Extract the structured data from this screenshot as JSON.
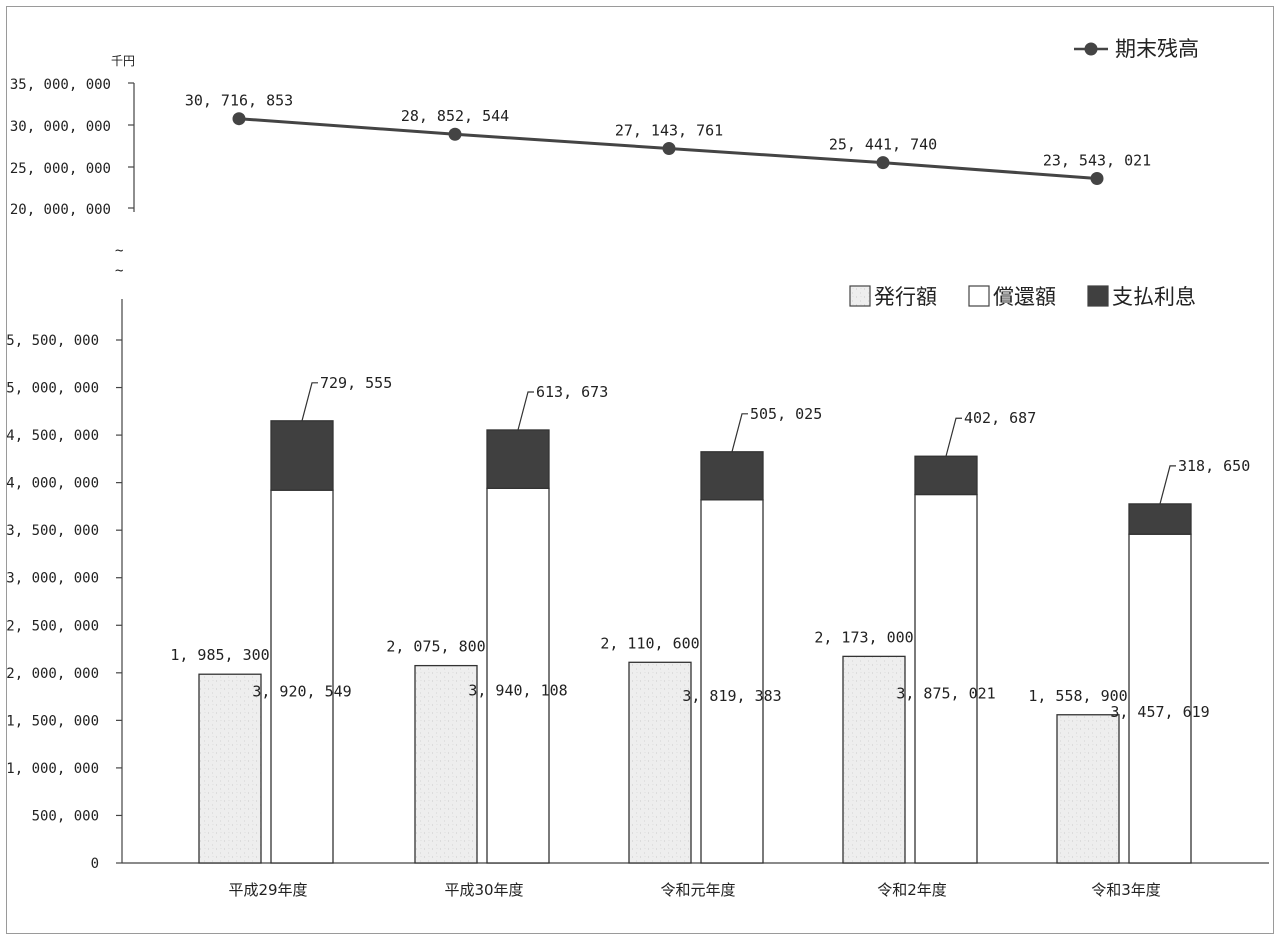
{
  "chart_data": {
    "type": "bar",
    "unit": "千円",
    "categories": [
      "平成29年度",
      "平成30年度",
      "令和元年度",
      "令和2年度",
      "令和3年度"
    ],
    "series": [
      {
        "name": "発行額",
        "type": "bar",
        "values": [
          1985300,
          2075800,
          2110600,
          2173000,
          1558900
        ],
        "labels": [
          "1, 985, 300",
          "2, 075, 800",
          "2, 110, 600",
          "2, 173, 000",
          "1, 558, 900"
        ]
      },
      {
        "name": "償還額",
        "type": "stacked-bar",
        "values": [
          3920549,
          3940108,
          3819383,
          3875021,
          3457619
        ],
        "labels": [
          "3, 920, 549",
          "3, 940, 108",
          "3, 819, 383",
          "3, 875, 021",
          "3, 457, 619"
        ]
      },
      {
        "name": "支払利息",
        "type": "stacked-bar",
        "values": [
          729555,
          613673,
          505025,
          402687,
          318650
        ],
        "labels": [
          "729, 555",
          "613, 673",
          "505, 025",
          "402, 687",
          "318, 650"
        ]
      },
      {
        "name": "期末残高",
        "type": "line",
        "values": [
          30716853,
          28852544,
          27143761,
          25441740,
          23543021
        ],
        "labels": [
          "30, 716, 853",
          "28, 852, 544",
          "27, 143, 761",
          "25, 441, 740",
          "23, 543, 021"
        ]
      }
    ],
    "upper_axis": {
      "ylim": [
        20000000,
        35000000
      ],
      "ticks": [
        "20, 000, 000",
        "25, 000, 000",
        "30, 000, 000",
        "35, 000, 000"
      ]
    },
    "lower_axis": {
      "ylim": [
        0,
        5500000
      ],
      "ticks": [
        "0",
        "500, 000",
        "1, 000, 000",
        "1, 500, 000",
        "2, 000, 000",
        "2, 500, 000",
        "3, 000, 000",
        "3, 500, 000",
        "4, 000, 000",
        "4, 500, 000",
        "5, 000, 000",
        "5, 500, 000"
      ]
    },
    "axis_break": "~",
    "legend_position": "top-right",
    "grid": false,
    "colors": {
      "issue": "#eeeeee",
      "redemption": "#ffffff",
      "interest": "#404040",
      "line": "#444444"
    }
  }
}
